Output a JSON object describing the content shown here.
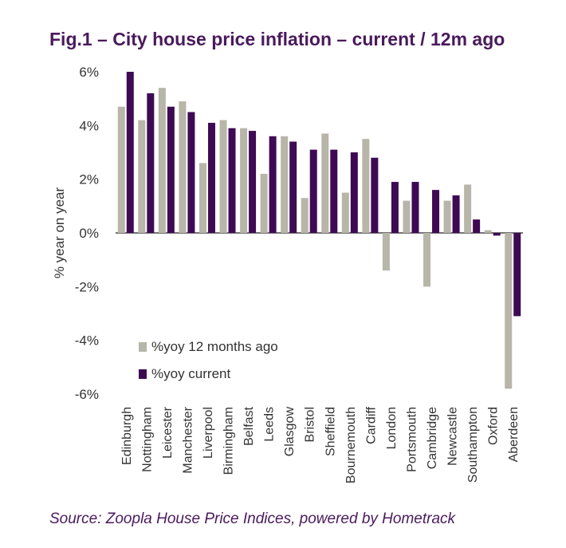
{
  "chart_data": {
    "type": "bar",
    "title": "Fig.1 – City house price inflation – current / 12m ago",
    "ylabel": "% year on year",
    "xlabel": "",
    "ylim": [
      -6,
      6
    ],
    "yticks": [
      6,
      4,
      2,
      0,
      -2,
      -4,
      -6
    ],
    "ytick_labels": [
      "6%",
      "4%",
      "2%",
      "0%",
      "-2%",
      "-4%",
      "-6%"
    ],
    "grid": false,
    "legend_position": "bottom-left",
    "categories": [
      "Edinburgh",
      "Nottingham",
      "Leicester",
      "Manchester",
      "Liverpool",
      "Birmingham",
      "Belfast",
      "Leeds",
      "Glasgow",
      "Bristol",
      "Sheffield",
      "Bournemouth",
      "Cardiff",
      "London",
      "Portsmouth",
      "Cambridge",
      "Newcastle",
      "Southampton",
      "Oxford",
      "Aberdeen"
    ],
    "series": [
      {
        "name": "%yoy 12 months ago",
        "color": "#b8b5a9",
        "values": [
          4.7,
          4.2,
          5.4,
          4.9,
          2.6,
          4.2,
          3.9,
          2.2,
          3.6,
          1.3,
          3.7,
          1.5,
          3.5,
          -1.4,
          1.2,
          -2.0,
          1.2,
          1.8,
          0.1,
          -5.8
        ]
      },
      {
        "name": "%yoy current",
        "color": "#3f0a54",
        "values": [
          6.0,
          5.2,
          4.7,
          4.5,
          4.1,
          3.9,
          3.8,
          3.6,
          3.4,
          3.1,
          3.1,
          3.0,
          2.8,
          1.9,
          1.9,
          1.6,
          1.4,
          0.5,
          -0.1,
          -3.1
        ]
      }
    ]
  },
  "footer": {
    "source": "Source: Zoopla House Price Indices, powered by Hometrack"
  }
}
